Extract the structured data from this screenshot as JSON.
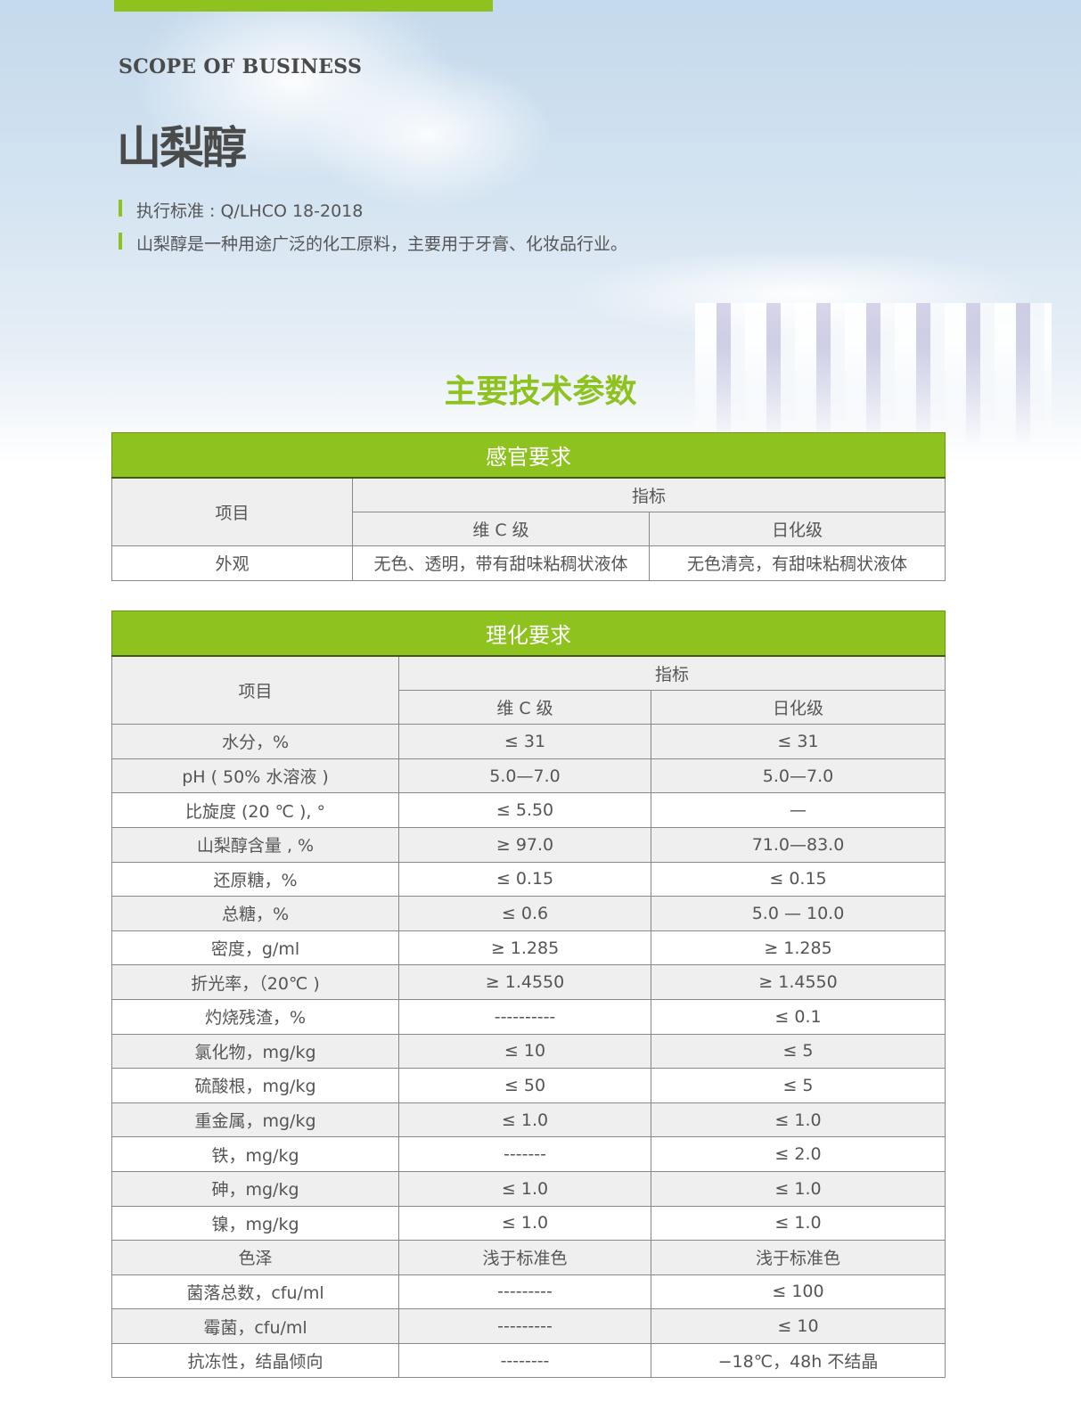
{
  "hero": {
    "scope_label": "SCOPE OF BUSINESS",
    "product_title": "山梨醇",
    "standard": "执行标准 : Q/LHCO 18-2018",
    "description": "山梨醇是一种用途广泛的化工原料，主要用于牙膏、化妆品行业。"
  },
  "section_heading": "主要技术参数",
  "accent_color": "#8dc21f",
  "sensory_table": {
    "title": "感官要求",
    "col_item": "项目",
    "col_index": "指标",
    "col_vc": "维 C 级",
    "col_daily": "日化级",
    "rows": [
      {
        "item": "外观",
        "vc": "无色、透明，带有甜味粘稠状液体",
        "daily": "无色清亮，有甜味粘稠状液体"
      }
    ]
  },
  "physchem_table": {
    "title": "理化要求",
    "col_item": "项目",
    "col_index": "指标",
    "col_vc": "维 C 级",
    "col_daily": "日化级",
    "rows": [
      {
        "item": "水分，%",
        "vc": "≤ 31",
        "daily": "≤ 31"
      },
      {
        "item": "pH ( 50% 水溶液 )",
        "vc": "5.0—7.0",
        "daily": "5.0—7.0"
      },
      {
        "item": "比旋度 (20 ℃ ), °",
        "vc": "≤ 5.50",
        "daily": "—"
      },
      {
        "item": "山梨醇含量 , %",
        "vc": "≥ 97.0",
        "daily": "71.0—83.0"
      },
      {
        "item": "还原糖，%",
        "vc": "≤ 0.15",
        "daily": "≤ 0.15"
      },
      {
        "item": "总糖，%",
        "vc": "≤ 0.6",
        "daily": "5.0 — 10.0"
      },
      {
        "item": "密度，g/ml",
        "vc": "≥ 1.285",
        "daily": "≥ 1.285"
      },
      {
        "item": "折光率，（20℃ )",
        "vc": "≥ 1.4550",
        "daily": "≥ 1.4550"
      },
      {
        "item": "灼烧残渣，%",
        "vc": "----------",
        "daily": "≤ 0.1"
      },
      {
        "item": "氯化物，mg/kg",
        "vc": "≤ 10",
        "daily": "≤ 5"
      },
      {
        "item": "硫酸根，mg/kg",
        "vc": "≤ 50",
        "daily": "≤ 5"
      },
      {
        "item": "重金属，mg/kg",
        "vc": "≤ 1.0",
        "daily": "≤ 1.0"
      },
      {
        "item": "铁，mg/kg",
        "vc": "-------",
        "daily": "≤ 2.0"
      },
      {
        "item": "砷，mg/kg",
        "vc": "≤ 1.0",
        "daily": "≤ 1.0"
      },
      {
        "item": "镍，mg/kg",
        "vc": "≤ 1.0",
        "daily": "≤ 1.0"
      },
      {
        "item": "色泽",
        "vc": "浅于标准色",
        "daily": "浅于标准色"
      },
      {
        "item": "菌落总数，cfu/ml",
        "vc": "---------",
        "daily": "≤ 100"
      },
      {
        "item": "霉菌，cfu/ml",
        "vc": "---------",
        "daily": "≤ 10"
      },
      {
        "item": "抗冻性，结晶倾向",
        "vc": "--------",
        "daily": "−18℃，48h 不结晶"
      }
    ]
  }
}
